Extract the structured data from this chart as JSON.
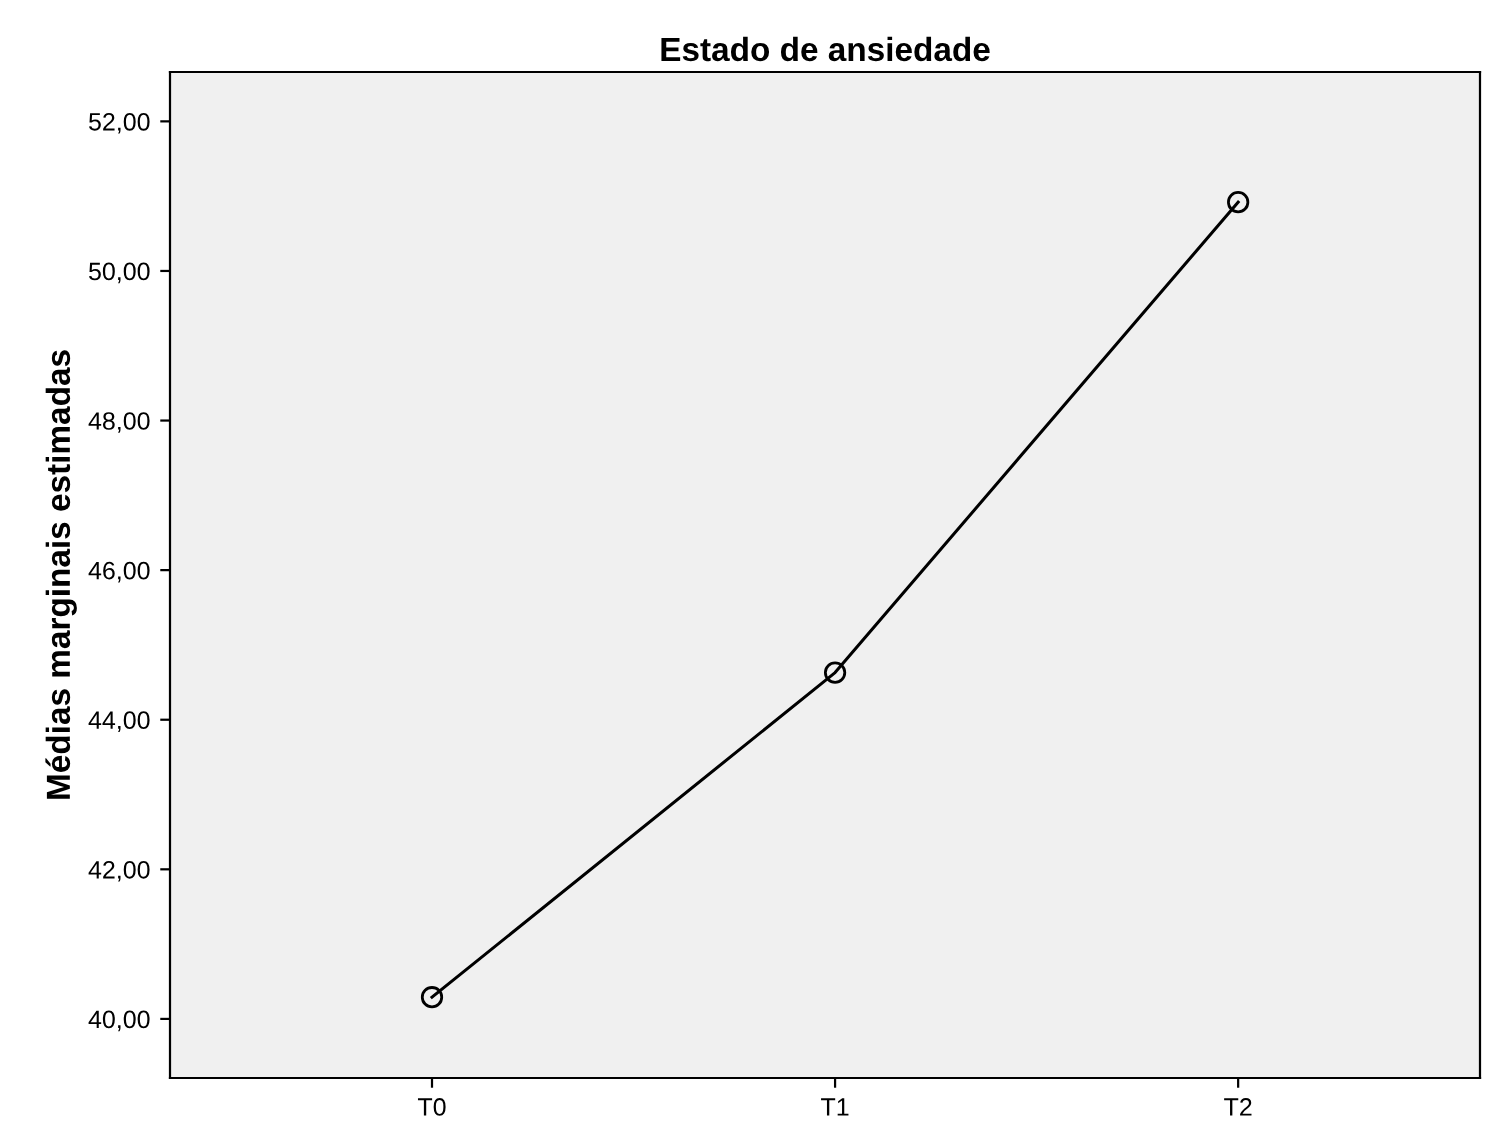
{
  "chart_data": {
    "type": "line",
    "title": "Estado de ansiedade",
    "ylabel": "Médias marginais estimadas",
    "categories": [
      "T0",
      "T1",
      "T2"
    ],
    "series": [
      {
        "color": "#000000",
        "values": [
          40.29,
          44.63,
          50.92
        ]
      }
    ],
    "marker": "circle",
    "line_style": "solid",
    "ylim": [
      39.21,
      52.66
    ],
    "yticks": [
      {
        "value": 40,
        "label": "40,00"
      },
      {
        "value": 42,
        "label": "42,00"
      },
      {
        "value": 44,
        "label": "44,00"
      },
      {
        "value": 46,
        "label": "46,00"
      },
      {
        "value": 48,
        "label": "48,00"
      },
      {
        "value": 50,
        "label": "50,00"
      },
      {
        "value": 52,
        "label": "52,00"
      }
    ],
    "grid": false,
    "legend": false
  }
}
